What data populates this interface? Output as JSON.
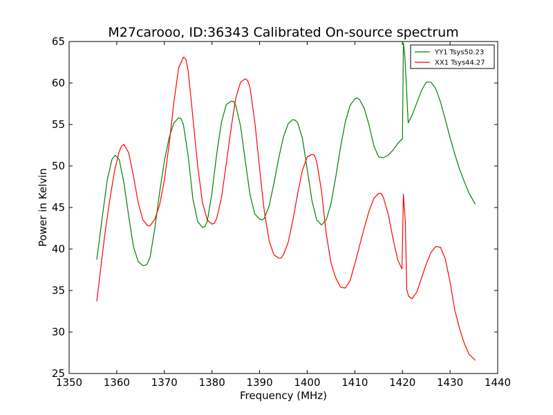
{
  "chart_data": {
    "type": "line",
    "title": "M27carooo, ID:36343 Calibrated On-source spectrum",
    "xlabel": "Frequency (MHz)",
    "ylabel": "Power in Kelvin",
    "xlim": [
      1350,
      1440
    ],
    "ylim": [
      25,
      65
    ],
    "xticks": [
      1350,
      1360,
      1370,
      1380,
      1390,
      1400,
      1410,
      1420,
      1430,
      1440
    ],
    "yticks": [
      25,
      30,
      35,
      40,
      45,
      50,
      55,
      60,
      65
    ],
    "grid": false,
    "legend_placement": "top-right",
    "series": [
      {
        "name": "YY1 Tsys50.23",
        "color": "#008000",
        "x": [
          1355.8,
          1357.0,
          1358.0,
          1359.0,
          1359.7,
          1360.5,
          1361.5,
          1362.5,
          1363.5,
          1364.5,
          1365.5,
          1366.3,
          1367.0,
          1368.0,
          1369.0,
          1370.0,
          1371.0,
          1372.0,
          1373.0,
          1373.5,
          1374.0,
          1375.0,
          1376.0,
          1377.0,
          1378.0,
          1378.5,
          1379.0,
          1380.0,
          1381.0,
          1382.0,
          1383.0,
          1384.0,
          1384.5,
          1385.0,
          1386.0,
          1387.0,
          1388.0,
          1389.0,
          1390.0,
          1390.5,
          1391.0,
          1392.0,
          1393.0,
          1394.0,
          1395.0,
          1396.0,
          1397.0,
          1397.5,
          1398.0,
          1399.0,
          1400.0,
          1401.0,
          1402.0,
          1403.0,
          1404.0,
          1405.0,
          1406.0,
          1407.0,
          1408.0,
          1409.0,
          1410.0,
          1410.5,
          1411.0,
          1412.0,
          1413.0,
          1414.0,
          1415.0,
          1416.0,
          1417.0,
          1418.0,
          1419.0,
          1420.0,
          1420.2,
          1420.5,
          1420.8,
          1421.2,
          1422.0,
          1423.0,
          1424.0,
          1425.0,
          1426.0,
          1427.0,
          1428.0,
          1429.0,
          1430.0,
          1431.0,
          1432.0,
          1433.0,
          1434.0,
          1435.3
        ],
        "y": [
          38.7,
          44.0,
          48.3,
          50.8,
          51.3,
          50.8,
          48.0,
          44.0,
          40.3,
          38.5,
          38.0,
          38.1,
          39.0,
          42.5,
          46.8,
          50.6,
          53.4,
          55.2,
          55.8,
          55.7,
          55.0,
          51.2,
          46.0,
          43.3,
          42.6,
          42.7,
          43.3,
          46.8,
          51.5,
          55.3,
          57.4,
          57.8,
          57.8,
          57.3,
          54.8,
          50.6,
          46.5,
          44.2,
          43.6,
          43.5,
          43.7,
          45.2,
          47.9,
          50.9,
          53.5,
          55.1,
          55.6,
          55.5,
          55.2,
          53.3,
          49.6,
          45.8,
          43.5,
          42.9,
          43.5,
          45.5,
          48.7,
          52.3,
          55.3,
          57.3,
          58.1,
          58.2,
          58.0,
          56.9,
          54.9,
          52.4,
          51.1,
          51.0,
          51.3,
          51.9,
          52.7,
          53.3,
          64.8,
          63.2,
          60.0,
          55.2,
          56.1,
          57.6,
          59.1,
          60.1,
          60.1,
          59.3,
          57.7,
          55.6,
          53.4,
          51.4,
          49.6,
          48.1,
          46.7,
          45.4
        ]
      },
      {
        "name": "XX1 Tsys44.27",
        "color": "#ff0000",
        "x": [
          1355.8,
          1356.5,
          1357.5,
          1358.5,
          1359.5,
          1360.5,
          1361.0,
          1361.5,
          1362.5,
          1363.5,
          1364.5,
          1365.5,
          1366.5,
          1367.0,
          1368.0,
          1369.0,
          1370.0,
          1371.0,
          1372.0,
          1373.0,
          1374.0,
          1374.5,
          1375.0,
          1376.0,
          1377.0,
          1378.0,
          1379.0,
          1380.0,
          1380.5,
          1381.0,
          1382.0,
          1383.0,
          1384.0,
          1385.0,
          1386.0,
          1387.0,
          1387.5,
          1388.0,
          1389.0,
          1390.0,
          1391.0,
          1392.0,
          1393.0,
          1394.0,
          1394.5,
          1395.0,
          1396.0,
          1397.0,
          1398.0,
          1399.0,
          1400.0,
          1401.0,
          1401.5,
          1402.0,
          1403.0,
          1404.0,
          1405.0,
          1406.0,
          1407.0,
          1408.0,
          1409.0,
          1410.0,
          1411.0,
          1412.0,
          1413.0,
          1414.0,
          1415.0,
          1415.5,
          1416.0,
          1417.0,
          1418.0,
          1419.0,
          1419.9,
          1420.2,
          1420.6,
          1420.9,
          1421.3,
          1422.0,
          1423.0,
          1424.0,
          1425.0,
          1426.0,
          1427.0,
          1428.0,
          1429.0,
          1430.0,
          1431.0,
          1432.0,
          1433.0,
          1434.0,
          1435.3
        ],
        "y": [
          33.7,
          37.0,
          41.8,
          45.8,
          49.3,
          51.7,
          52.4,
          52.6,
          51.6,
          48.8,
          45.6,
          43.5,
          42.8,
          42.8,
          43.6,
          45.3,
          48.3,
          52.6,
          57.7,
          61.8,
          63.1,
          62.9,
          61.5,
          55.8,
          50.0,
          45.6,
          43.5,
          43.0,
          43.1,
          43.7,
          46.2,
          50.3,
          54.5,
          58.2,
          60.1,
          60.5,
          60.3,
          59.4,
          55.3,
          49.7,
          44.5,
          41.0,
          39.3,
          38.9,
          38.9,
          39.3,
          40.8,
          43.5,
          46.7,
          49.5,
          51.1,
          51.4,
          51.3,
          50.5,
          47.0,
          41.8,
          38.3,
          36.5,
          35.4,
          35.3,
          36.2,
          38.2,
          40.4,
          42.6,
          44.6,
          46.1,
          46.7,
          46.7,
          46.2,
          44.2,
          41.3,
          38.7,
          37.6,
          46.6,
          43.3,
          35.1,
          34.3,
          34.0,
          34.8,
          36.5,
          38.2,
          39.6,
          40.3,
          40.2,
          38.8,
          36.0,
          32.6,
          30.4,
          28.6,
          27.3,
          26.6
        ]
      }
    ]
  }
}
